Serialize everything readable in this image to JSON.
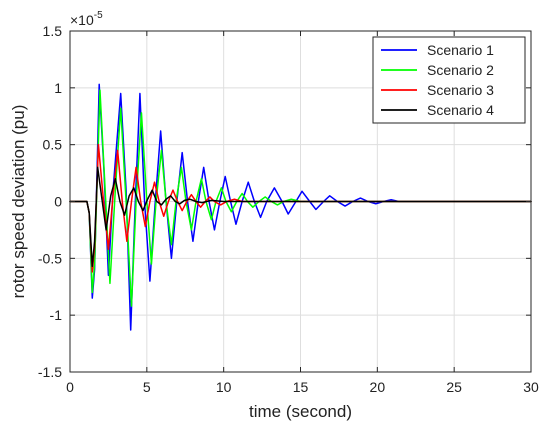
{
  "chart_data": {
    "type": "line",
    "title": "",
    "xlabel": "time (second)",
    "ylabel": "rotor speed deviation (pu)",
    "y_exponent_label": "×10",
    "y_exponent_power": "-5",
    "xlim": [
      0,
      30
    ],
    "ylim": [
      -1.5,
      1.5
    ],
    "x_ticks": [
      0,
      5,
      10,
      15,
      20,
      25,
      30
    ],
    "y_ticks": [
      -1.5,
      -1,
      -0.5,
      0,
      0.5,
      1,
      1.5
    ],
    "x_tick_labels": [
      "0",
      "5",
      "10",
      "15",
      "20",
      "25",
      "30"
    ],
    "y_tick_labels": [
      "-1.5",
      "-1",
      "-0.5",
      "0",
      "0.5",
      "1",
      "1.5"
    ],
    "grid": true,
    "legend_position": "top-right",
    "series": [
      {
        "name": "Scenario 1",
        "color": "#0000ff",
        "values": [
          [
            0,
            0
          ],
          [
            1.1,
            0
          ],
          [
            1.25,
            -0.1
          ],
          [
            1.45,
            -0.85
          ],
          [
            1.6,
            -0.6
          ],
          [
            1.9,
            1.03
          ],
          [
            2.2,
            0.3
          ],
          [
            2.5,
            -0.65
          ],
          [
            2.8,
            0.1
          ],
          [
            3.3,
            0.95
          ],
          [
            3.65,
            0.1
          ],
          [
            3.95,
            -1.13
          ],
          [
            4.25,
            0.0
          ],
          [
            4.55,
            0.95
          ],
          [
            4.85,
            0.0
          ],
          [
            5.2,
            -0.7
          ],
          [
            5.55,
            0.0
          ],
          [
            5.9,
            0.62
          ],
          [
            6.25,
            0.0
          ],
          [
            6.6,
            -0.5
          ],
          [
            6.95,
            0.0
          ],
          [
            7.3,
            0.43
          ],
          [
            7.65,
            0.0
          ],
          [
            8.0,
            -0.35
          ],
          [
            8.35,
            0.0
          ],
          [
            8.7,
            0.3
          ],
          [
            9.05,
            0.0
          ],
          [
            9.4,
            -0.25
          ],
          [
            9.75,
            0.0
          ],
          [
            10.1,
            0.22
          ],
          [
            10.45,
            0.0
          ],
          [
            10.8,
            -0.2
          ],
          [
            11.2,
            0.0
          ],
          [
            11.6,
            0.17
          ],
          [
            12.0,
            0.0
          ],
          [
            12.4,
            -0.14
          ],
          [
            12.8,
            0.0
          ],
          [
            13.3,
            0.12
          ],
          [
            13.8,
            0.0
          ],
          [
            14.2,
            -0.11
          ],
          [
            14.7,
            0.0
          ],
          [
            15.1,
            0.09
          ],
          [
            15.6,
            0.0
          ],
          [
            16.0,
            -0.07
          ],
          [
            16.5,
            0.0
          ],
          [
            16.9,
            0.05
          ],
          [
            17.4,
            0.0
          ],
          [
            17.9,
            -0.04
          ],
          [
            18.4,
            0.0
          ],
          [
            18.9,
            0.03
          ],
          [
            19.4,
            0.0
          ],
          [
            19.9,
            -0.02
          ],
          [
            20.4,
            0.0
          ],
          [
            20.9,
            0.015
          ],
          [
            21.4,
            0.0
          ],
          [
            22,
            0
          ],
          [
            30,
            0
          ]
        ]
      },
      {
        "name": "Scenario 2",
        "color": "#00ff00",
        "values": [
          [
            0,
            0
          ],
          [
            1.1,
            0
          ],
          [
            1.25,
            -0.1
          ],
          [
            1.45,
            -0.8
          ],
          [
            1.6,
            -0.55
          ],
          [
            1.95,
            0.98
          ],
          [
            2.25,
            0.2
          ],
          [
            2.6,
            -0.72
          ],
          [
            2.95,
            0.1
          ],
          [
            3.3,
            0.82
          ],
          [
            3.65,
            0.0
          ],
          [
            4.0,
            -0.92
          ],
          [
            4.3,
            0.0
          ],
          [
            4.65,
            0.78
          ],
          [
            5.0,
            0.0
          ],
          [
            5.3,
            -0.55
          ],
          [
            5.6,
            0.0
          ],
          [
            5.95,
            0.45
          ],
          [
            6.25,
            0.0
          ],
          [
            6.6,
            -0.38
          ],
          [
            6.9,
            0.0
          ],
          [
            7.25,
            0.3
          ],
          [
            7.55,
            0.0
          ],
          [
            7.9,
            -0.25
          ],
          [
            8.2,
            0.0
          ],
          [
            8.55,
            0.2
          ],
          [
            8.85,
            0.0
          ],
          [
            9.2,
            -0.16
          ],
          [
            9.5,
            0.0
          ],
          [
            9.85,
            0.12
          ],
          [
            10.15,
            0.0
          ],
          [
            10.5,
            -0.09
          ],
          [
            10.85,
            0.0
          ],
          [
            11.2,
            0.07
          ],
          [
            11.55,
            0.0
          ],
          [
            11.9,
            -0.05
          ],
          [
            12.3,
            0.0
          ],
          [
            12.7,
            0.04
          ],
          [
            13.1,
            0.0
          ],
          [
            13.5,
            -0.03
          ],
          [
            13.9,
            0.0
          ],
          [
            14.4,
            0.02
          ],
          [
            15,
            0
          ],
          [
            30,
            0
          ]
        ]
      },
      {
        "name": "Scenario 3",
        "color": "#ff0000",
        "values": [
          [
            0,
            0
          ],
          [
            1.1,
            0
          ],
          [
            1.25,
            -0.1
          ],
          [
            1.45,
            -0.62
          ],
          [
            1.6,
            -0.4
          ],
          [
            1.85,
            0.5
          ],
          [
            2.15,
            0.05
          ],
          [
            2.5,
            -0.42
          ],
          [
            2.8,
            0.05
          ],
          [
            3.1,
            0.45
          ],
          [
            3.4,
            0.0
          ],
          [
            3.7,
            -0.35
          ],
          [
            4.0,
            0.0
          ],
          [
            4.3,
            0.3
          ],
          [
            4.6,
            0.0
          ],
          [
            4.9,
            -0.22
          ],
          [
            5.2,
            0.0
          ],
          [
            5.5,
            0.17
          ],
          [
            5.8,
            0.0
          ],
          [
            6.1,
            -0.13
          ],
          [
            6.4,
            0.0
          ],
          [
            6.7,
            0.1
          ],
          [
            7.0,
            0.0
          ],
          [
            7.3,
            -0.08
          ],
          [
            7.6,
            0.0
          ],
          [
            7.9,
            0.06
          ],
          [
            8.2,
            0.0
          ],
          [
            8.5,
            -0.05
          ],
          [
            8.8,
            0.0
          ],
          [
            9.1,
            0.04
          ],
          [
            9.4,
            0.0
          ],
          [
            9.8,
            -0.03
          ],
          [
            10.2,
            0.0
          ],
          [
            10.7,
            0.02
          ],
          [
            11.2,
            0
          ],
          [
            30,
            0
          ]
        ]
      },
      {
        "name": "Scenario 4",
        "color": "#000000",
        "values": [
          [
            0,
            0
          ],
          [
            1.1,
            0
          ],
          [
            1.25,
            -0.1
          ],
          [
            1.45,
            -0.57
          ],
          [
            1.6,
            -0.35
          ],
          [
            1.8,
            0.3
          ],
          [
            2.05,
            0.05
          ],
          [
            2.35,
            -0.25
          ],
          [
            2.65,
            0.05
          ],
          [
            2.95,
            0.2
          ],
          [
            3.25,
            0.0
          ],
          [
            3.55,
            -0.12
          ],
          [
            3.85,
            0.05
          ],
          [
            4.15,
            0.12
          ],
          [
            4.45,
            0.0
          ],
          [
            4.75,
            -0.08
          ],
          [
            5.05,
            0.02
          ],
          [
            5.35,
            0.1
          ],
          [
            5.65,
            0.0
          ],
          [
            5.95,
            -0.03
          ],
          [
            6.25,
            0.02
          ],
          [
            6.55,
            0.05
          ],
          [
            6.85,
            0.0
          ],
          [
            7.15,
            -0.02
          ],
          [
            7.45,
            0.01
          ],
          [
            7.8,
            0.02
          ],
          [
            8.2,
            0.0
          ],
          [
            8.6,
            -0.01
          ],
          [
            9.2,
            0.01
          ],
          [
            10,
            0
          ],
          [
            30,
            0
          ]
        ]
      }
    ]
  }
}
